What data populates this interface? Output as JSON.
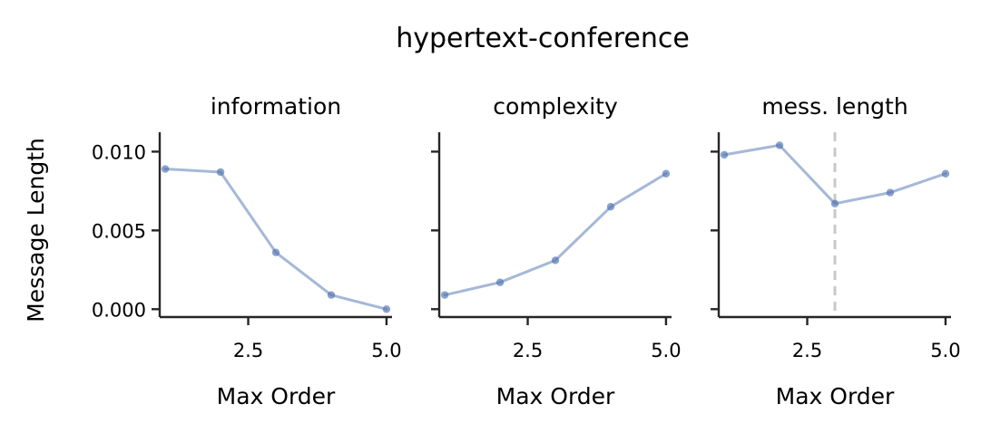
{
  "suptitle": "hypertext-conference",
  "colors": {
    "series": "#4c72b0",
    "axis": "#262626",
    "optimum_marker": "#c8c8c8"
  },
  "chart_data": [
    {
      "type": "line",
      "title": "information",
      "xlabel": "Max Order",
      "ylabel": "Message Length",
      "x": [
        1,
        2,
        3,
        4,
        5
      ],
      "values": [
        0.0089,
        0.0087,
        0.0036,
        0.0009,
        0.0
      ],
      "xlim": [
        0.9,
        5.1
      ],
      "ylim": [
        -0.0005,
        0.011
      ],
      "xticks": [
        2.5,
        5.0
      ],
      "xtick_labels": [
        "2.5",
        "5.0"
      ],
      "yticks": [
        0.0,
        0.005,
        0.01
      ],
      "ytick_labels": [
        "0.000",
        "0.005",
        "0.010"
      ]
    },
    {
      "type": "line",
      "title": "complexity",
      "xlabel": "Max Order",
      "x": [
        1,
        2,
        3,
        4,
        5
      ],
      "values": [
        0.0009,
        0.0017,
        0.0031,
        0.0065,
        0.0086
      ],
      "xlim": [
        0.9,
        5.1
      ],
      "ylim": [
        -0.0005,
        0.011
      ],
      "xticks": [
        2.5,
        5.0
      ],
      "xtick_labels": [
        "2.5",
        "5.0"
      ],
      "yticks": [
        0.0,
        0.005,
        0.01
      ],
      "ytick_labels": [
        "",
        "",
        ""
      ]
    },
    {
      "type": "line",
      "title": "mess. length",
      "xlabel": "Max Order",
      "x": [
        1,
        2,
        3,
        4,
        5
      ],
      "values": [
        0.0098,
        0.0104,
        0.0067,
        0.0074,
        0.0086
      ],
      "xlim": [
        0.9,
        5.1
      ],
      "ylim": [
        -0.0005,
        0.011
      ],
      "xticks": [
        2.5,
        5.0
      ],
      "xtick_labels": [
        "2.5",
        "5.0"
      ],
      "yticks": [
        0.0,
        0.005,
        0.01
      ],
      "ytick_labels": [
        "",
        "",
        ""
      ],
      "optimum_x": 3
    }
  ]
}
